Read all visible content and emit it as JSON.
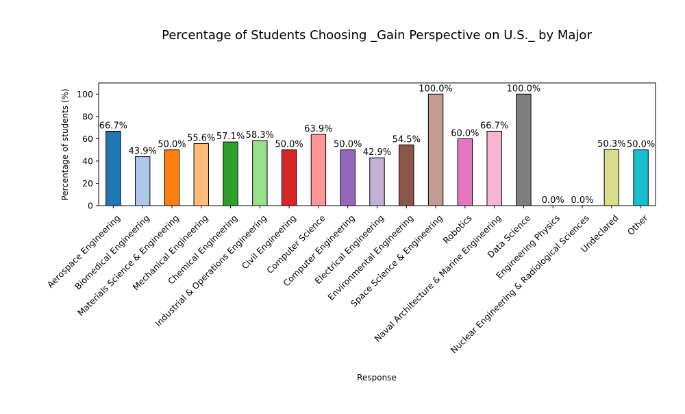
{
  "chart_data": {
    "type": "bar",
    "title": "Percentage of Students Choosing _Gain Perspective on U.S._ by Major",
    "xlabel": "Response",
    "ylabel": "Percentage of students (%)",
    "ylim": [
      0,
      110
    ],
    "yticks": [
      0,
      20,
      40,
      60,
      80,
      100
    ],
    "grid": false,
    "legend": "none",
    "categories": [
      "Aerospace Engineering",
      "Biomedical Engineering",
      "Materials Science & Engineering",
      "Mechanical Engineering",
      "Chemical Engineering",
      "Industrial & Operations Engineering",
      "Civil Engineering",
      "Computer Science",
      "Computer Engineering",
      "Electrical Engineering",
      "Environmental Engineering",
      "Space Science & Engineering",
      "Robotics",
      "Naval Architecture & Marine Engineering",
      "Data Science",
      "Engineering Physics",
      "Nuclear Engineering & Radiological Sciences",
      "Undeclared",
      "Other"
    ],
    "values": [
      66.7,
      43.9,
      50.0,
      55.6,
      57.1,
      58.3,
      50.0,
      63.9,
      50.0,
      42.9,
      54.5,
      100.0,
      60.0,
      66.7,
      100.0,
      0.0,
      0.0,
      50.3,
      50.0
    ],
    "data_labels": [
      "66.7%",
      "43.9%",
      "50.0%",
      "55.6%",
      "57.1%",
      "58.3%",
      "50.0%",
      "63.9%",
      "50.0%",
      "42.9%",
      "54.5%",
      "100.0%",
      "60.0%",
      "66.7%",
      "100.0%",
      "0.0%",
      "0.0%",
      "50.3%",
      "50.0%"
    ],
    "colors": [
      "#1f77b4",
      "#aec7e8",
      "#ff7f0e",
      "#ffbb78",
      "#2ca02c",
      "#98df8a",
      "#d62728",
      "#ff9896",
      "#9467bd",
      "#c5b0d5",
      "#8c564b",
      "#c49c94",
      "#e377c2",
      "#f7b6d2",
      "#7f7f7f",
      "#c7c7c7",
      "#bcbd22",
      "#dbdb8d",
      "#17becf"
    ],
    "edge_color": "#000000"
  }
}
